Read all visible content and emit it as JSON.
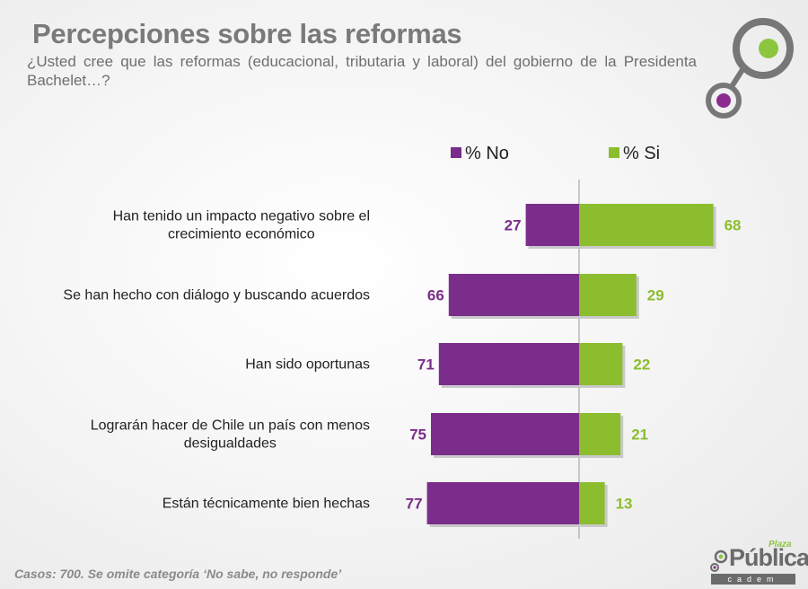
{
  "header": {
    "title": "Percepciones sobre las reformas",
    "subtitle": "¿Usted cree que las reformas (educacional, tributaria y laboral) del gobierno de la Presidenta Bachelet…?"
  },
  "footer": {
    "note": "Casos: 700. Se omite categoría ‘No sabe, no responde’",
    "brand_small": "Plaza",
    "brand_name": "Pública",
    "brand_sub": "cadem"
  },
  "colors": {
    "no": "#7b2d8b",
    "si": "#8cbd2f",
    "label": "#222222",
    "axis": "#999999"
  },
  "chart_data": {
    "type": "bar",
    "orientation": "diverging-horizontal",
    "title": "Percepciones sobre las reformas",
    "legend_position": "top",
    "categories": [
      [
        "Han tenido un impacto negativo sobre el",
        "crecimiento económico"
      ],
      [
        "Se han hecho con diálogo y buscando acuerdos"
      ],
      [
        "Han sido oportunas"
      ],
      [
        "Lograrán hacer de Chile un país con menos",
        "desigualdades"
      ],
      [
        "Están técnicamente bien hechas"
      ]
    ],
    "series": [
      {
        "name": "% No",
        "color": "#7b2d8b",
        "values": [
          27,
          66,
          71,
          75,
          77
        ]
      },
      {
        "name": "% Si",
        "color": "#8cbd2f",
        "values": [
          68,
          29,
          22,
          21,
          13
        ]
      }
    ],
    "xlim": [
      -100,
      100
    ]
  }
}
